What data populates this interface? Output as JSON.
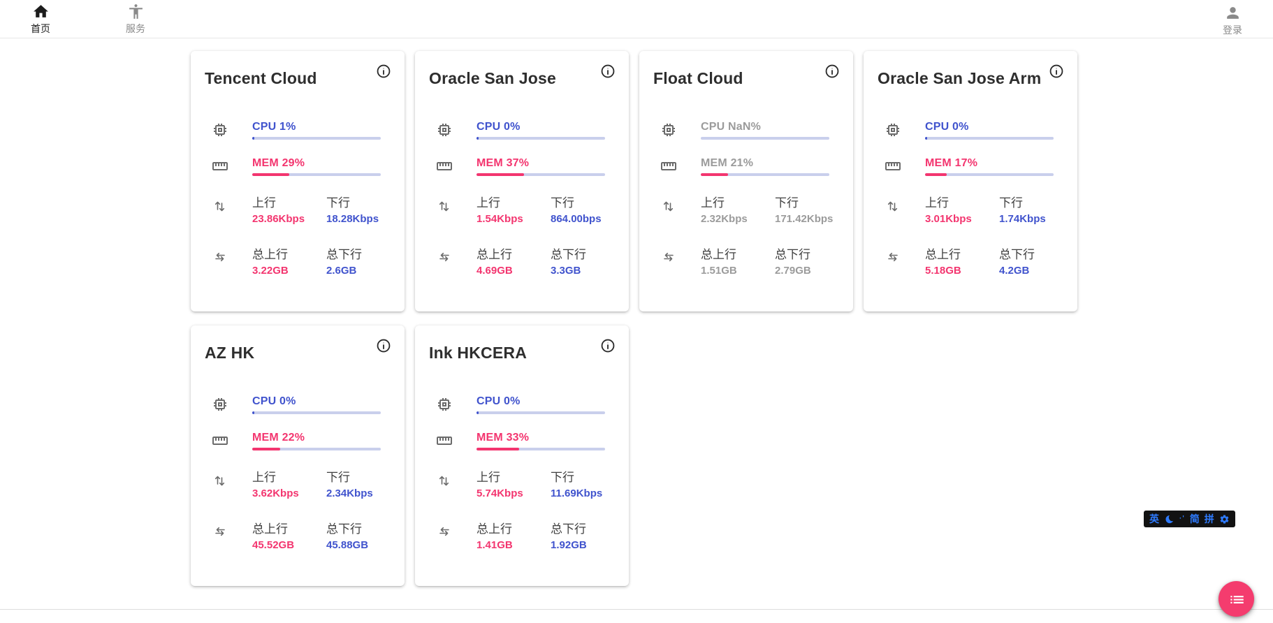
{
  "nav": {
    "home": {
      "label": "首页"
    },
    "services": {
      "label": "服务"
    },
    "login": {
      "label": "登录"
    }
  },
  "labels": {
    "up": "上行",
    "down": "下行",
    "total_up": "总上行",
    "total_down": "总下行"
  },
  "cards": [
    {
      "title": "Tencent Cloud",
      "cpu_text": "CPU 1%",
      "cpu_pct": 1,
      "mem_text": "MEM 29%",
      "mem_pct": 29,
      "up": "23.86Kbps",
      "down": "18.28Kbps",
      "total_up": "3.22GB",
      "total_down": "2.6GB",
      "offline": false
    },
    {
      "title": "Oracle San Jose",
      "cpu_text": "CPU 0%",
      "cpu_pct": 0,
      "mem_text": "MEM 37%",
      "mem_pct": 37,
      "up": "1.54Kbps",
      "down": "864.00bps",
      "total_up": "4.69GB",
      "total_down": "3.3GB",
      "offline": false
    },
    {
      "title": "Float Cloud",
      "cpu_text": "CPU NaN%",
      "cpu_pct": 0,
      "mem_text": "MEM 21%",
      "mem_pct": 21,
      "up": "2.32Kbps",
      "down": "171.42Kbps",
      "total_up": "1.51GB",
      "total_down": "2.79GB",
      "offline": true
    },
    {
      "title": "Oracle San Jose Arm",
      "cpu_text": "CPU 0%",
      "cpu_pct": 0,
      "mem_text": "MEM 17%",
      "mem_pct": 17,
      "up": "3.01Kbps",
      "down": "1.74Kbps",
      "total_up": "5.18GB",
      "total_down": "4.2GB",
      "offline": false
    },
    {
      "title": "AZ HK",
      "cpu_text": "CPU 0%",
      "cpu_pct": 0,
      "mem_text": "MEM 22%",
      "mem_pct": 22,
      "up": "3.62Kbps",
      "down": "2.34Kbps",
      "total_up": "45.52GB",
      "total_down": "45.88GB",
      "offline": false
    },
    {
      "title": "Ink HKCERA",
      "cpu_text": "CPU 0%",
      "cpu_pct": 0,
      "mem_text": "MEM 33%",
      "mem_pct": 33,
      "up": "5.74Kbps",
      "down": "11.69Kbps",
      "total_up": "1.41GB",
      "total_down": "1.92GB",
      "offline": false
    }
  ],
  "ime": {
    "english": "英",
    "marks": "·'",
    "simplified": "简",
    "pinyin": "拼"
  },
  "colors": {
    "blue": "#4053cd",
    "pink": "#f3356f",
    "offline_gray": "#9b9b9b",
    "track": "#c9cfec",
    "fab": "#f43c6e",
    "ime_blue": "#2e7bff"
  }
}
